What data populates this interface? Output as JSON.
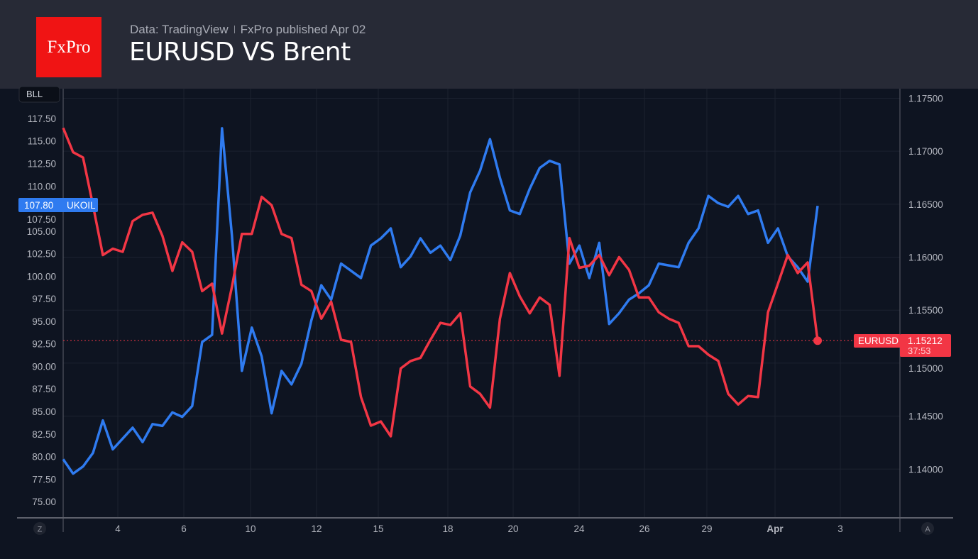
{
  "header": {
    "logo_text": "FxPro",
    "source": "Data: TradingView",
    "published": "FxPro published Apr 02",
    "title": "EURUSD VS Brent"
  },
  "colors": {
    "ukoil": "#2f7bf0",
    "eurusd": "#f23645",
    "background": "#0e1421",
    "header": "#272a36",
    "logo": "#f01414"
  },
  "buttons": {
    "left_scale": "Z",
    "right_scale": "A",
    "symbol_tag": "BLL"
  },
  "chart_data": {
    "type": "line",
    "title": "EURUSD VS Brent",
    "x_tick_labels": [
      "4",
      "6",
      "10",
      "12",
      "15",
      "18",
      "20",
      "24",
      "26",
      "29",
      "Apr",
      "3"
    ],
    "left_axis": {
      "ticks": [
        "117.50",
        "115.00",
        "112.50",
        "110.00",
        "107.50",
        "105.00",
        "102.50",
        "100.00",
        "97.50",
        "95.00",
        "92.50",
        "90.00",
        "87.50",
        "85.00",
        "82.50",
        "80.00",
        "77.50",
        "75.00"
      ],
      "ylim": [
        73.2,
        120.8
      ]
    },
    "right_axis": {
      "ticks": [
        "1.17500",
        "1.17000",
        "1.16500",
        "1.16000",
        "1.15500",
        "1.15000",
        "1.14500",
        "1.14000"
      ],
      "ylim": [
        1.1354,
        1.1759
      ]
    },
    "grid": true,
    "series": [
      {
        "name": "UKOIL",
        "axis": "left",
        "color": "#2f7bf0",
        "last_label": "107.80",
        "values": [
          79.7,
          78.1,
          78.9,
          80.4,
          84.0,
          80.8,
          82.0,
          83.2,
          81.6,
          83.6,
          83.4,
          84.9,
          84.4,
          85.6,
          92.7,
          93.5,
          116.4,
          104.5,
          89.5,
          94.3,
          91.1,
          84.8,
          89.5,
          88.0,
          90.3,
          95.1,
          99.0,
          97.4,
          101.4,
          100.6,
          99.8,
          103.4,
          104.2,
          105.3,
          101.0,
          102.2,
          104.2,
          102.6,
          103.4,
          101.8,
          104.5,
          109.3,
          111.7,
          115.2,
          110.9,
          107.3,
          106.9,
          109.7,
          112.0,
          112.8,
          112.4,
          101.4,
          103.4,
          99.8,
          103.7,
          94.7,
          95.9,
          97.4,
          98.1,
          99.0,
          101.4,
          101.2,
          101.0,
          103.7,
          105.3,
          108.9,
          108.1,
          107.7,
          108.9,
          106.9,
          107.3,
          103.7,
          105.3,
          102.2,
          101.0,
          99.4,
          107.8
        ]
      },
      {
        "name": "EURUSD",
        "axis": "right",
        "color": "#f23645",
        "last_label": "1.15212",
        "countdown": "37:53",
        "values": [
          1.1722,
          1.1699,
          1.1694,
          1.1649,
          1.1602,
          1.1608,
          1.1605,
          1.1634,
          1.164,
          1.1642,
          1.162,
          1.1587,
          1.1614,
          1.1605,
          1.1568,
          1.1575,
          1.1528,
          1.1572,
          1.1622,
          1.1622,
          1.1657,
          1.1649,
          1.1622,
          1.1618,
          1.1574,
          1.1568,
          1.1542,
          1.1558,
          1.1522,
          1.152,
          1.1468,
          1.1441,
          1.1445,
          1.1431,
          1.1495,
          1.1502,
          1.1505,
          1.1522,
          1.1538,
          1.1536,
          1.1547,
          1.1478,
          1.1471,
          1.1458,
          1.1542,
          1.1585,
          1.1563,
          1.1547,
          1.1562,
          1.1555,
          1.1488,
          1.1618,
          1.159,
          1.1592,
          1.1602,
          1.1583,
          1.16,
          1.1588,
          1.1562,
          1.1562,
          1.1548,
          1.1542,
          1.1538,
          1.1516,
          1.1516,
          1.1508,
          1.1502,
          1.1471,
          1.1461,
          1.1469,
          1.1468,
          1.1548,
          1.1575,
          1.1602,
          1.1585,
          1.1595,
          1.15212
        ]
      }
    ]
  }
}
